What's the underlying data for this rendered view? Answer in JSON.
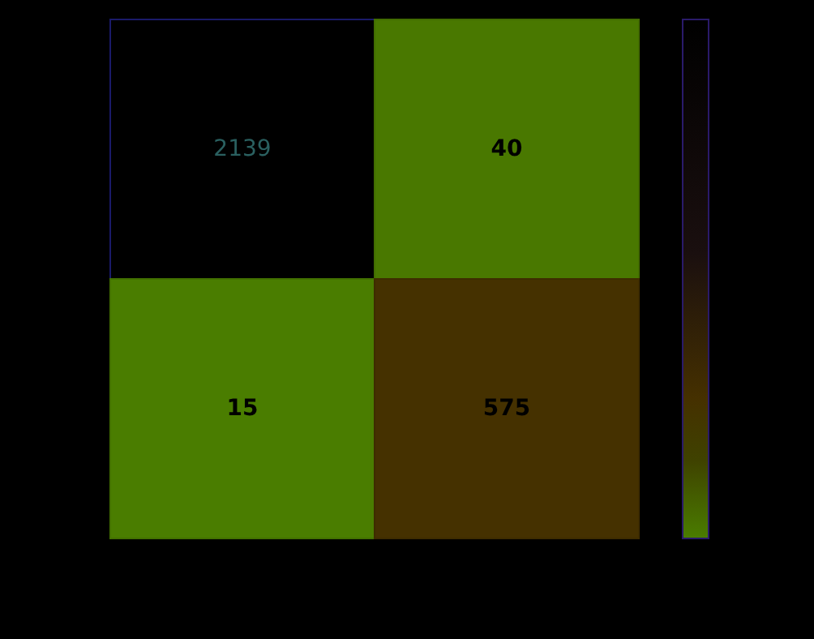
{
  "chart_data": {
    "type": "heatmap",
    "categories": [
      null,
      null
    ],
    "y_categories": [
      null,
      null
    ],
    "cells": [
      [
        2139,
        40
      ],
      [
        15,
        575
      ]
    ],
    "data_labels": true
  }
}
